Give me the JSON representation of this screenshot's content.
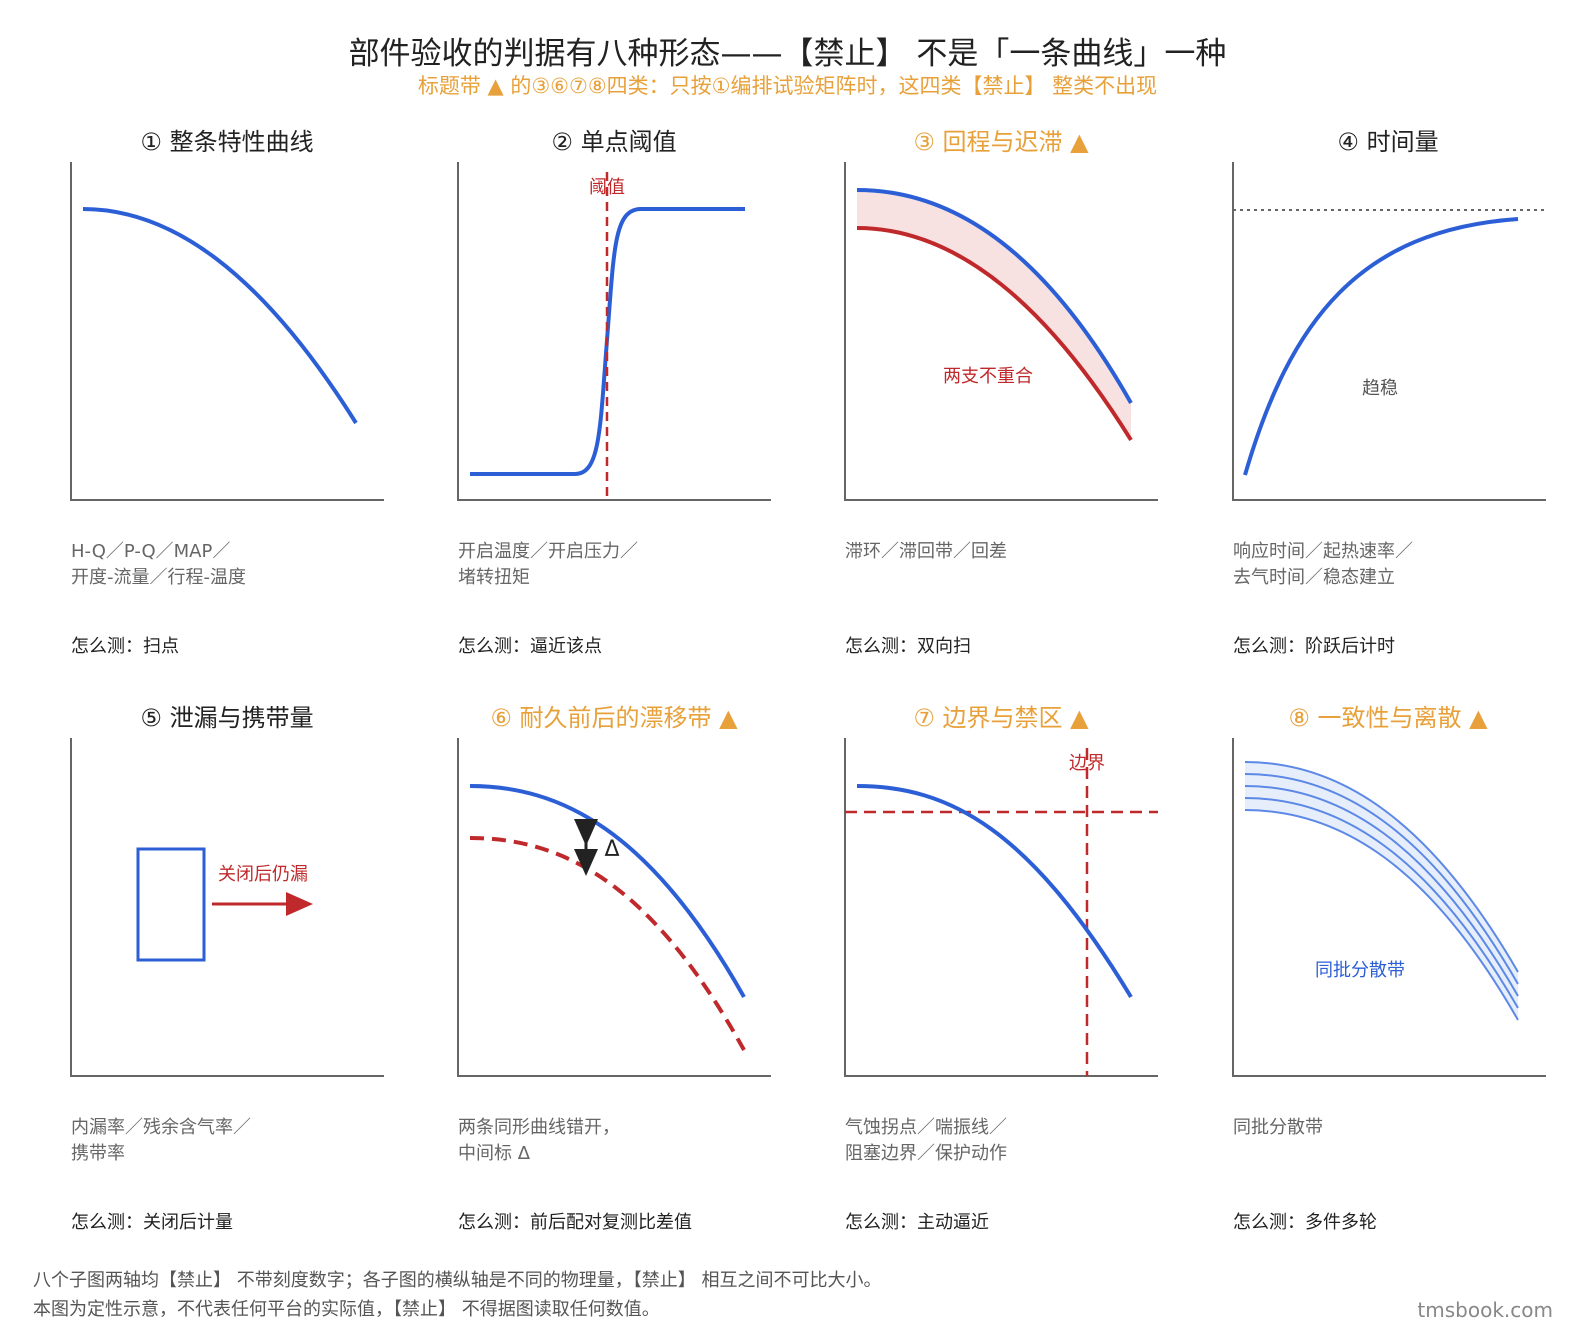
{
  "title": "部件验收的判据有八种形态——【禁止】 不是「一条曲线」一种",
  "subtitle": "标题带 ▲ 的③⑥⑦⑧四类：只按①编排试验矩阵时，这四类【禁止】 整类不出现",
  "colors": {
    "accent": "#e8a13a",
    "curve": "#2c5fd6",
    "red": "#c0292b",
    "axis": "#666666"
  },
  "panels": [
    {
      "title": "① 整条特性曲线",
      "warn": false,
      "desc": [
        "H-Q／P-Q／MAP／",
        "开度-流量／行程-温度"
      ],
      "how": "怎么测：扫点",
      "labels": []
    },
    {
      "title": "② 单点阈值",
      "warn": false,
      "desc": [
        "开启温度／开启压力／",
        "堵转扭矩"
      ],
      "how": "怎么测：逼近该点",
      "labels": [
        "阈值"
      ]
    },
    {
      "title": "③ 回程与迟滞 ▲",
      "warn": true,
      "desc": [
        "滞环／滞回带／回差"
      ],
      "how": "怎么测：双向扫",
      "labels": [
        "两支不重合"
      ]
    },
    {
      "title": "④ 时间量",
      "warn": false,
      "desc": [
        "响应时间／起热速率／",
        "去气时间／稳态建立"
      ],
      "how": "怎么测：阶跃后计时",
      "labels": [
        "趋稳"
      ]
    },
    {
      "title": "⑤ 泄漏与携带量",
      "warn": false,
      "desc": [
        "内漏率／残余含气率／",
        "携带率"
      ],
      "how": "怎么测：关闭后计量",
      "labels": [
        "关闭后仍漏"
      ]
    },
    {
      "title": "⑥ 耐久前后的漂移带 ▲",
      "warn": true,
      "desc": [
        "两条同形曲线错开，",
        "中间标 Δ"
      ],
      "how": "怎么测：前后配对复测比差值",
      "labels": [
        "Δ"
      ]
    },
    {
      "title": "⑦ 边界与禁区 ▲",
      "warn": true,
      "desc": [
        "气蚀拐点／喘振线／",
        "阻塞边界／保护动作"
      ],
      "how": "怎么测：主动逼近",
      "labels": [
        "边界"
      ]
    },
    {
      "title": "⑧ 一致性与离散 ▲",
      "warn": true,
      "desc": [
        "同批分散带"
      ],
      "how": "怎么测：多件多轮",
      "labels": [
        "同批分散带"
      ]
    }
  ],
  "footer": [
    "八个子图两轴均【禁止】 不带刻度数字；各子图的横纵轴是不同的物理量，【禁止】 相互之间不可比大小。",
    "本图为定性示意，不代表任何平台的实际值，【禁止】 不得据图读取任何数值。"
  ],
  "site": "tmsbook.com"
}
